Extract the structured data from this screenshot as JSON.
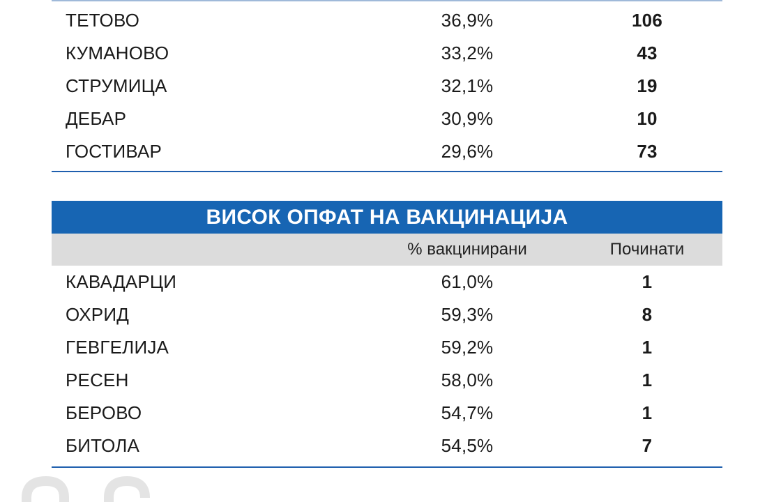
{
  "low_table": {
    "rows": [
      {
        "name": "ТЕТОВО",
        "pct": "36,9%",
        "count": "106"
      },
      {
        "name": "КУМАНОВО",
        "pct": "33,2%",
        "count": "43"
      },
      {
        "name": "СТРУМИЦА",
        "pct": "32,1%",
        "count": "19"
      },
      {
        "name": "ДЕБАР",
        "pct": "30,9%",
        "count": "10"
      },
      {
        "name": "ГОСТИВАР",
        "pct": "29,6%",
        "count": "73"
      }
    ]
  },
  "high_table": {
    "title": "ВИСОК ОПФАТ НА ВАКЦИНАЦИЈА",
    "col_pct": "% вакцинирани",
    "col_count": "Починати",
    "rows": [
      {
        "name": "КАВАДАРЦИ",
        "pct": "61,0%",
        "count": "1"
      },
      {
        "name": "ОХРИД",
        "pct": "59,3%",
        "count": "8"
      },
      {
        "name": "ГЕВГЕЛИЈА",
        "pct": "59,2%",
        "count": "1"
      },
      {
        "name": "РЕСЕН",
        "pct": "58,0%",
        "count": "1"
      },
      {
        "name": "БЕРОВО",
        "pct": "54,7%",
        "count": "1"
      },
      {
        "name": "БИТОЛА",
        "pct": "54,5%",
        "count": "7"
      }
    ]
  },
  "colors": {
    "accent": "#1765b3",
    "header_gray": "#dcdcdc"
  }
}
